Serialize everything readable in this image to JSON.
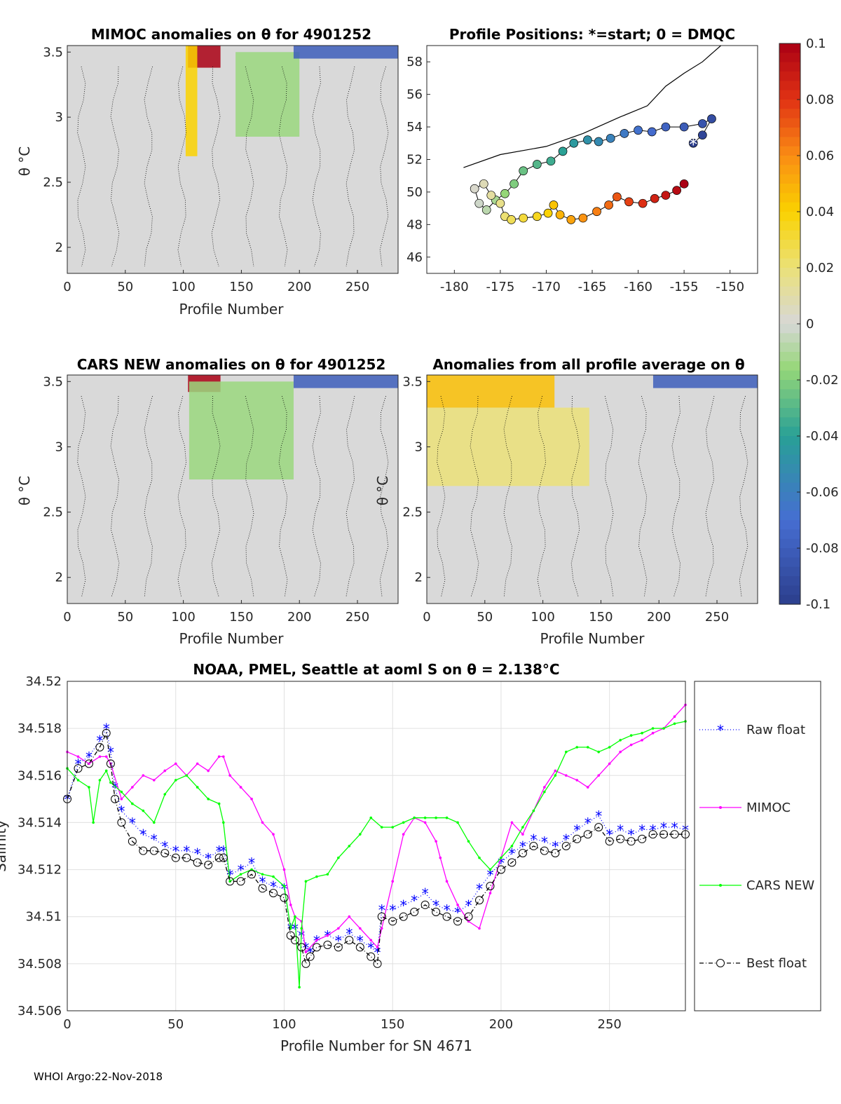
{
  "footer": "WHOI Argo:22-Nov-2018",
  "panels": {
    "mimoc": {
      "title": "MIMOC anomalies on θ  for 4901252",
      "xlabel": "Profile Number",
      "ylabel": "θ °C",
      "xlim": [
        0,
        285
      ],
      "ylim": [
        1.8,
        3.55
      ],
      "xticks": [
        "0",
        "50",
        "100",
        "150",
        "200",
        "250"
      ],
      "yticks": [
        "2",
        "2.5",
        "3",
        "3.5"
      ],
      "features": [
        {
          "name": "red-patch",
          "x": [
            104,
            132
          ],
          "y": [
            3.38,
            3.55
          ],
          "value": 0.1
        },
        {
          "name": "yellow-streak",
          "x": [
            102,
            112
          ],
          "y": [
            2.7,
            3.55
          ],
          "value": 0.04
        },
        {
          "name": "green-patch",
          "x": [
            145,
            200
          ],
          "y": [
            2.85,
            3.5
          ],
          "value": -0.015
        },
        {
          "name": "blue-band",
          "x": [
            195,
            285
          ],
          "y": [
            3.45,
            3.55
          ],
          "value": -0.08
        }
      ]
    },
    "positions": {
      "title": "Profile Positions: *=start; 0 = DMQC",
      "xlim": [
        -183,
        -147
      ],
      "ylim": [
        45,
        59
      ],
      "xticks": [
        "-180",
        "-175",
        "-170",
        "-165",
        "-160",
        "-155",
        "-150"
      ],
      "yticks": [
        "46",
        "48",
        "50",
        "52",
        "54",
        "56",
        "58"
      ],
      "track": [
        [
          -154,
          53.0
        ],
        [
          -153,
          53.5
        ],
        [
          -152,
          54.5
        ],
        [
          -153,
          54.2
        ],
        [
          -155,
          54.0
        ],
        [
          -157,
          54.0
        ],
        [
          -158.5,
          53.7
        ],
        [
          -160,
          53.8
        ],
        [
          -161.5,
          53.6
        ],
        [
          -163,
          53.3
        ],
        [
          -164.3,
          53.1
        ],
        [
          -165.5,
          53.2
        ],
        [
          -167,
          53.0
        ],
        [
          -168.2,
          52.5
        ],
        [
          -169.5,
          51.9
        ],
        [
          -171,
          51.7
        ],
        [
          -172.5,
          51.3
        ],
        [
          -173.5,
          50.5
        ],
        [
          -174.5,
          49.9
        ],
        [
          -175.5,
          49.5
        ],
        [
          -176.5,
          48.9
        ],
        [
          -177.3,
          49.3
        ],
        [
          -177.8,
          50.2
        ],
        [
          -176.8,
          50.5
        ],
        [
          -176,
          49.8
        ],
        [
          -175,
          49.3
        ],
        [
          -174.5,
          48.5
        ],
        [
          -173.8,
          48.3
        ],
        [
          -172.5,
          48.4
        ],
        [
          -171,
          48.5
        ],
        [
          -169.8,
          48.7
        ],
        [
          -169.2,
          49.2
        ],
        [
          -168.5,
          48.6
        ],
        [
          -167.3,
          48.3
        ],
        [
          -166,
          48.4
        ],
        [
          -164.5,
          48.8
        ],
        [
          -163.2,
          49.2
        ],
        [
          -162.3,
          49.7
        ],
        [
          -161,
          49.4
        ],
        [
          -159.5,
          49.3
        ],
        [
          -158.2,
          49.6
        ],
        [
          -157,
          49.8
        ],
        [
          -155.8,
          50.1
        ],
        [
          -155,
          50.5
        ]
      ],
      "start": [
        -154,
        53.0
      ],
      "coast_note": "coastline"
    },
    "cars": {
      "title": "CARS NEW anomalies on θ for 4901252",
      "xlabel": "Profile Number",
      "ylabel": "θ °C",
      "xlim": [
        0,
        285
      ],
      "ylim": [
        1.8,
        3.55
      ],
      "xticks": [
        "0",
        "50",
        "100",
        "150",
        "200",
        "250"
      ],
      "yticks": [
        "2",
        "2.5",
        "3",
        "3.5"
      ],
      "features": [
        {
          "name": "red-patch",
          "x": [
            104,
            132
          ],
          "y": [
            3.42,
            3.55
          ],
          "value": 0.1
        },
        {
          "name": "green-patch",
          "x": [
            105,
            195
          ],
          "y": [
            2.75,
            3.5
          ],
          "value": -0.015
        },
        {
          "name": "blue-band",
          "x": [
            195,
            285
          ],
          "y": [
            3.45,
            3.55
          ],
          "value": -0.08
        }
      ]
    },
    "allavg": {
      "title": "Anomalies from all profile average on θ",
      "xlabel": "Profile Number",
      "ylabel": "θ °C",
      "xlim": [
        0,
        285
      ],
      "ylim": [
        1.8,
        3.55
      ],
      "xticks": [
        "0",
        "50",
        "100",
        "150",
        "200",
        "250"
      ],
      "yticks": [
        "2",
        "2.5",
        "3",
        "3.5"
      ],
      "features": [
        {
          "name": "orange-top",
          "x": [
            0,
            110
          ],
          "y": [
            3.3,
            3.55
          ],
          "value": 0.045
        },
        {
          "name": "yellow-mid",
          "x": [
            0,
            140
          ],
          "y": [
            2.7,
            3.3
          ],
          "value": 0.02
        },
        {
          "name": "blue-band",
          "x": [
            195,
            285
          ],
          "y": [
            3.45,
            3.55
          ],
          "value": -0.08
        }
      ]
    },
    "colorbar": {
      "ticks": [
        "0.1",
        "0.08",
        "0.06",
        "0.04",
        "0.02",
        "0",
        "-0.02",
        "-0.04",
        "-0.06",
        "-0.08",
        "-0.1"
      ],
      "range": [
        -0.1,
        0.1
      ]
    }
  },
  "chart_data": {
    "type": "line",
    "title": "NOAA, PMEL, Seattle at aoml S on θ = 2.138°C",
    "xlabel": "Profile Number for SN 4671",
    "ylabel": "Salinity",
    "xlim": [
      0,
      285
    ],
    "ylim": [
      34.506,
      34.52
    ],
    "xticks": [
      "0",
      "50",
      "100",
      "150",
      "200",
      "250"
    ],
    "yticks": [
      "34.506",
      "34.508",
      "34.51",
      "34.512",
      "34.514",
      "34.516",
      "34.518",
      "34.52"
    ],
    "legend": [
      "Raw float",
      "MIMOC",
      "CARS NEW",
      "Best float"
    ],
    "series": [
      {
        "name": "Raw float",
        "color": "#0000ff",
        "x": [
          0,
          5,
          10,
          15,
          18,
          20,
          22,
          25,
          30,
          35,
          40,
          45,
          50,
          55,
          60,
          65,
          70,
          72,
          75,
          80,
          85,
          90,
          95,
          100,
          103,
          105,
          108,
          110,
          112,
          115,
          120,
          125,
          130,
          135,
          140,
          143,
          145,
          150,
          155,
          160,
          165,
          170,
          175,
          180,
          185,
          190,
          195,
          200,
          205,
          210,
          215,
          220,
          225,
          230,
          235,
          240,
          245,
          250,
          255,
          260,
          265,
          270,
          275,
          280,
          285
        ],
        "values": [
          34.515,
          34.5165,
          34.5168,
          34.5175,
          34.518,
          34.517,
          34.5155,
          34.5145,
          34.514,
          34.5135,
          34.5133,
          34.513,
          34.5128,
          34.5128,
          34.5127,
          34.5125,
          34.5128,
          34.5128,
          34.5118,
          34.512,
          34.5123,
          34.5115,
          34.5113,
          34.5112,
          34.5095,
          34.5095,
          34.5092,
          34.5087,
          34.5085,
          34.509,
          34.5092,
          34.509,
          34.5093,
          34.509,
          34.5087,
          34.5085,
          34.5103,
          34.5103,
          34.5105,
          34.5107,
          34.511,
          34.5105,
          34.5103,
          34.5102,
          34.5105,
          34.5112,
          34.5118,
          34.5123,
          34.5127,
          34.513,
          34.5133,
          34.5132,
          34.513,
          34.5133,
          34.5137,
          34.514,
          34.5143,
          34.5135,
          34.5137,
          34.5135,
          34.5137,
          34.5137,
          34.5138,
          34.5138,
          34.5137
        ]
      },
      {
        "name": "MIMOC",
        "color": "#ff00ff",
        "x": [
          0,
          5,
          10,
          15,
          18,
          20,
          25,
          30,
          35,
          40,
          45,
          50,
          55,
          60,
          65,
          70,
          72,
          75,
          80,
          85,
          90,
          95,
          100,
          103,
          105,
          108,
          110,
          115,
          120,
          125,
          130,
          135,
          140,
          143,
          145,
          150,
          155,
          160,
          165,
          170,
          172,
          175,
          180,
          185,
          190,
          195,
          200,
          205,
          210,
          215,
          220,
          225,
          230,
          235,
          240,
          245,
          250,
          255,
          260,
          265,
          270,
          275,
          280,
          285
        ],
        "values": [
          34.517,
          34.5168,
          34.5165,
          34.5168,
          34.5168,
          34.5165,
          34.515,
          34.5155,
          34.516,
          34.5158,
          34.5162,
          34.5165,
          34.516,
          34.5165,
          34.5162,
          34.5168,
          34.5168,
          34.516,
          34.5155,
          34.515,
          34.514,
          34.5135,
          34.512,
          34.5105,
          34.51,
          34.5098,
          34.5085,
          34.509,
          34.5092,
          34.5095,
          34.51,
          34.5095,
          34.509,
          34.5087,
          34.5095,
          34.5115,
          34.5135,
          34.5142,
          34.514,
          34.5132,
          34.5125,
          34.5115,
          34.5105,
          34.5098,
          34.5095,
          34.511,
          34.5125,
          34.514,
          34.5135,
          34.5145,
          34.5155,
          34.5162,
          34.516,
          34.5158,
          34.5155,
          34.516,
          34.5165,
          34.517,
          34.5173,
          34.5175,
          34.5178,
          34.518,
          34.5185,
          34.519
        ]
      },
      {
        "name": "CARS NEW",
        "color": "#00ff00",
        "x": [
          0,
          5,
          10,
          12,
          15,
          18,
          20,
          25,
          30,
          35,
          40,
          45,
          50,
          55,
          60,
          65,
          70,
          72,
          75,
          80,
          85,
          90,
          95,
          100,
          103,
          105,
          107,
          108,
          110,
          115,
          120,
          125,
          130,
          135,
          140,
          145,
          150,
          155,
          160,
          165,
          170,
          175,
          180,
          185,
          190,
          195,
          200,
          205,
          210,
          215,
          220,
          225,
          230,
          235,
          240,
          245,
          250,
          255,
          260,
          265,
          270,
          275,
          280,
          285
        ],
        "values": [
          34.5163,
          34.5158,
          34.5155,
          34.514,
          34.5158,
          34.5162,
          34.5157,
          34.5153,
          34.5148,
          34.5145,
          34.514,
          34.5152,
          34.5158,
          34.516,
          34.5155,
          34.515,
          34.5148,
          34.514,
          34.5115,
          34.5118,
          34.512,
          34.5118,
          34.5117,
          34.5113,
          34.5095,
          34.51,
          34.507,
          34.5095,
          34.5115,
          34.5117,
          34.5118,
          34.5125,
          34.513,
          34.5135,
          34.5142,
          34.5138,
          34.5138,
          34.514,
          34.5142,
          34.5142,
          34.5142,
          34.5142,
          34.514,
          34.5132,
          34.5125,
          34.512,
          34.5125,
          34.513,
          34.5138,
          34.5145,
          34.5153,
          34.516,
          34.517,
          34.5172,
          34.5172,
          34.517,
          34.5172,
          34.5175,
          34.5177,
          34.5178,
          34.518,
          34.518,
          34.5182,
          34.5183
        ]
      },
      {
        "name": "Best float",
        "color": "#000000",
        "x": [
          0,
          5,
          10,
          15,
          18,
          20,
          22,
          25,
          30,
          35,
          40,
          45,
          50,
          55,
          60,
          65,
          70,
          72,
          75,
          80,
          85,
          90,
          95,
          100,
          103,
          105,
          108,
          110,
          112,
          115,
          120,
          125,
          130,
          135,
          140,
          143,
          145,
          150,
          155,
          160,
          165,
          170,
          175,
          180,
          185,
          190,
          195,
          200,
          205,
          210,
          215,
          220,
          225,
          230,
          235,
          240,
          245,
          250,
          255,
          260,
          265,
          270,
          275,
          280,
          285
        ],
        "values": [
          34.515,
          34.5163,
          34.5165,
          34.5172,
          34.5178,
          34.5165,
          34.515,
          34.514,
          34.5132,
          34.5128,
          34.5128,
          34.5127,
          34.5125,
          34.5125,
          34.5123,
          34.5122,
          34.5125,
          34.5125,
          34.5115,
          34.5115,
          34.5118,
          34.5112,
          34.511,
          34.5108,
          34.5092,
          34.509,
          34.5087,
          34.508,
          34.5083,
          34.5087,
          34.5088,
          34.5087,
          34.509,
          34.5087,
          34.5083,
          34.508,
          34.51,
          34.5098,
          34.51,
          34.5102,
          34.5105,
          34.5102,
          34.51,
          34.5098,
          34.51,
          34.5107,
          34.5113,
          34.512,
          34.5123,
          34.5127,
          34.513,
          34.5128,
          34.5127,
          34.513,
          34.5133,
          34.5135,
          34.5138,
          34.5132,
          34.5133,
          34.5132,
          34.5133,
          34.5135,
          34.5135,
          34.5135,
          34.5135
        ]
      }
    ]
  }
}
